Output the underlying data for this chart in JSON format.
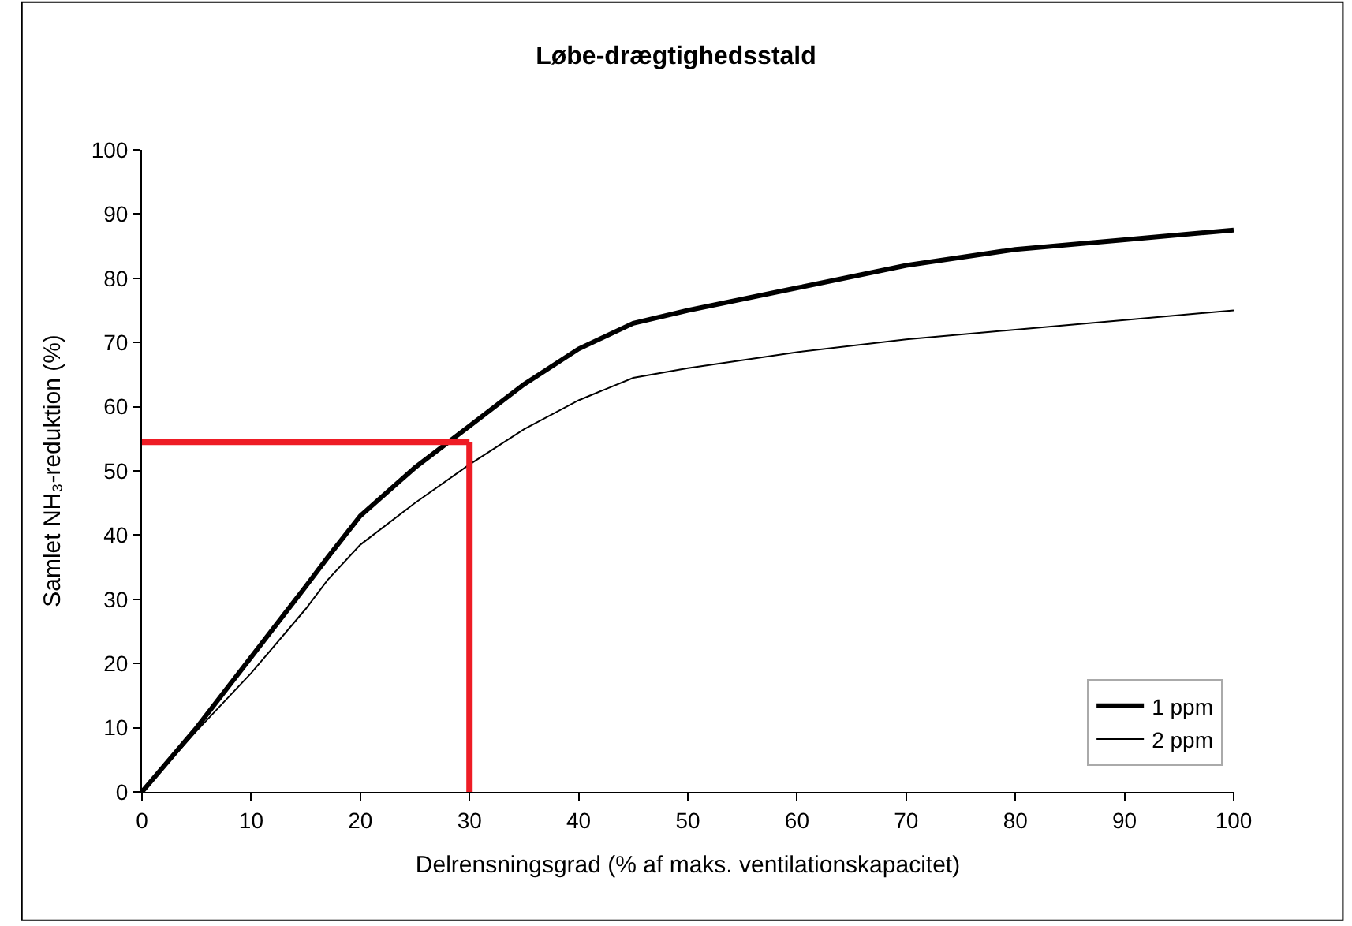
{
  "chart_data": {
    "type": "line",
    "title": "Løbe-drægtighedsstald",
    "xlabel": "Delrensningsgrad (% af maks. ventilationskapacitet)",
    "ylabel": "Samlet NH₃-reduktion (%)",
    "x": [
      0,
      5,
      10,
      15,
      17,
      20,
      25,
      30,
      35,
      40,
      45,
      50,
      60,
      70,
      80,
      90,
      100
    ],
    "series": [
      {
        "name": "1 ppm",
        "color": "#000000",
        "values": [
          0,
          10,
          21,
          32,
          36.5,
          43,
          50.5,
          57,
          63.5,
          69,
          73,
          75,
          78.5,
          82,
          84.5,
          86,
          87.5
        ]
      },
      {
        "name": "2 ppm",
        "color": "#000000",
        "values": [
          0,
          9.5,
          18.5,
          28.5,
          33,
          38.5,
          45,
          51,
          56.5,
          61,
          64.5,
          66,
          68.5,
          70.5,
          72,
          73.5,
          75
        ]
      }
    ],
    "ref_lines": [
      {
        "axis": "y",
        "value": 54.5,
        "color": "#ee1c25"
      },
      {
        "axis": "x",
        "value": 30,
        "color": "#ee1c25"
      }
    ],
    "xlim": [
      0,
      100
    ],
    "xticks": [
      0,
      10,
      20,
      30,
      40,
      50,
      60,
      70,
      80,
      90,
      100
    ],
    "ylim": [
      0,
      100
    ],
    "yticks": [
      0,
      10,
      20,
      30,
      40,
      50,
      60,
      70,
      80,
      90,
      100
    ],
    "legend": "bottom right",
    "grid": false,
    "marker": "none",
    "line_style": "solid"
  }
}
